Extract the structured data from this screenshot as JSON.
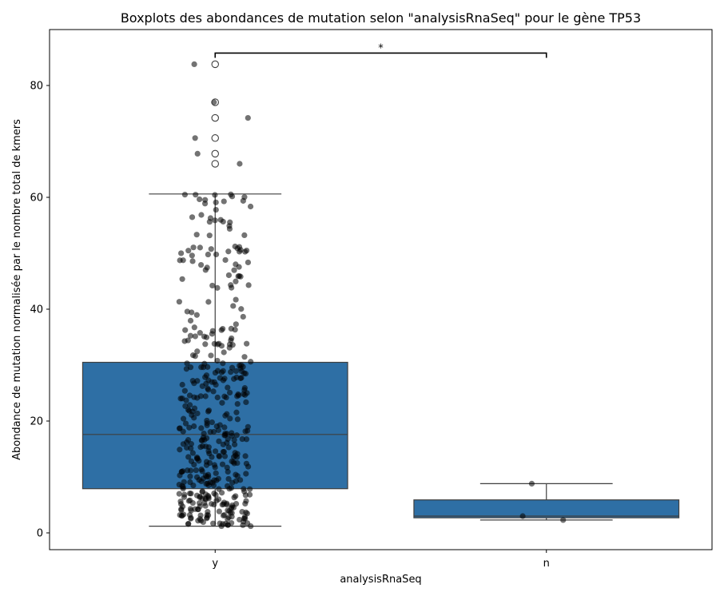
{
  "chart_data": {
    "type": "box",
    "title": "Boxplots des abondances de mutation selon \"analysisRnaSeq\" pour le gène TP53",
    "xlabel": "analysisRnaSeq",
    "ylabel": "Abondance de mutation normalisée par le nombre total de kmers",
    "categories": [
      "y",
      "n"
    ],
    "ylim": [
      -3,
      90
    ],
    "yticks": [
      0,
      20,
      40,
      60,
      80
    ],
    "grid": false,
    "box_color": "#2e6fa5",
    "point_color": "#000000",
    "boxes": [
      {
        "category": "y",
        "whisker_low": 1.2,
        "q1": 7.9,
        "median": 17.6,
        "q3": 30.5,
        "whisker_high": 60.6,
        "outliers": [
          83.8,
          77.0,
          74.2,
          70.6,
          67.8,
          66.0
        ]
      },
      {
        "category": "n",
        "whisker_low": 2.3,
        "q1": 2.7,
        "median": 3.0,
        "q3": 5.9,
        "whisker_high": 8.8,
        "outliers": []
      }
    ],
    "annotation": {
      "text": "*",
      "between": [
        "y",
        "n"
      ],
      "y": 85.8
    }
  }
}
